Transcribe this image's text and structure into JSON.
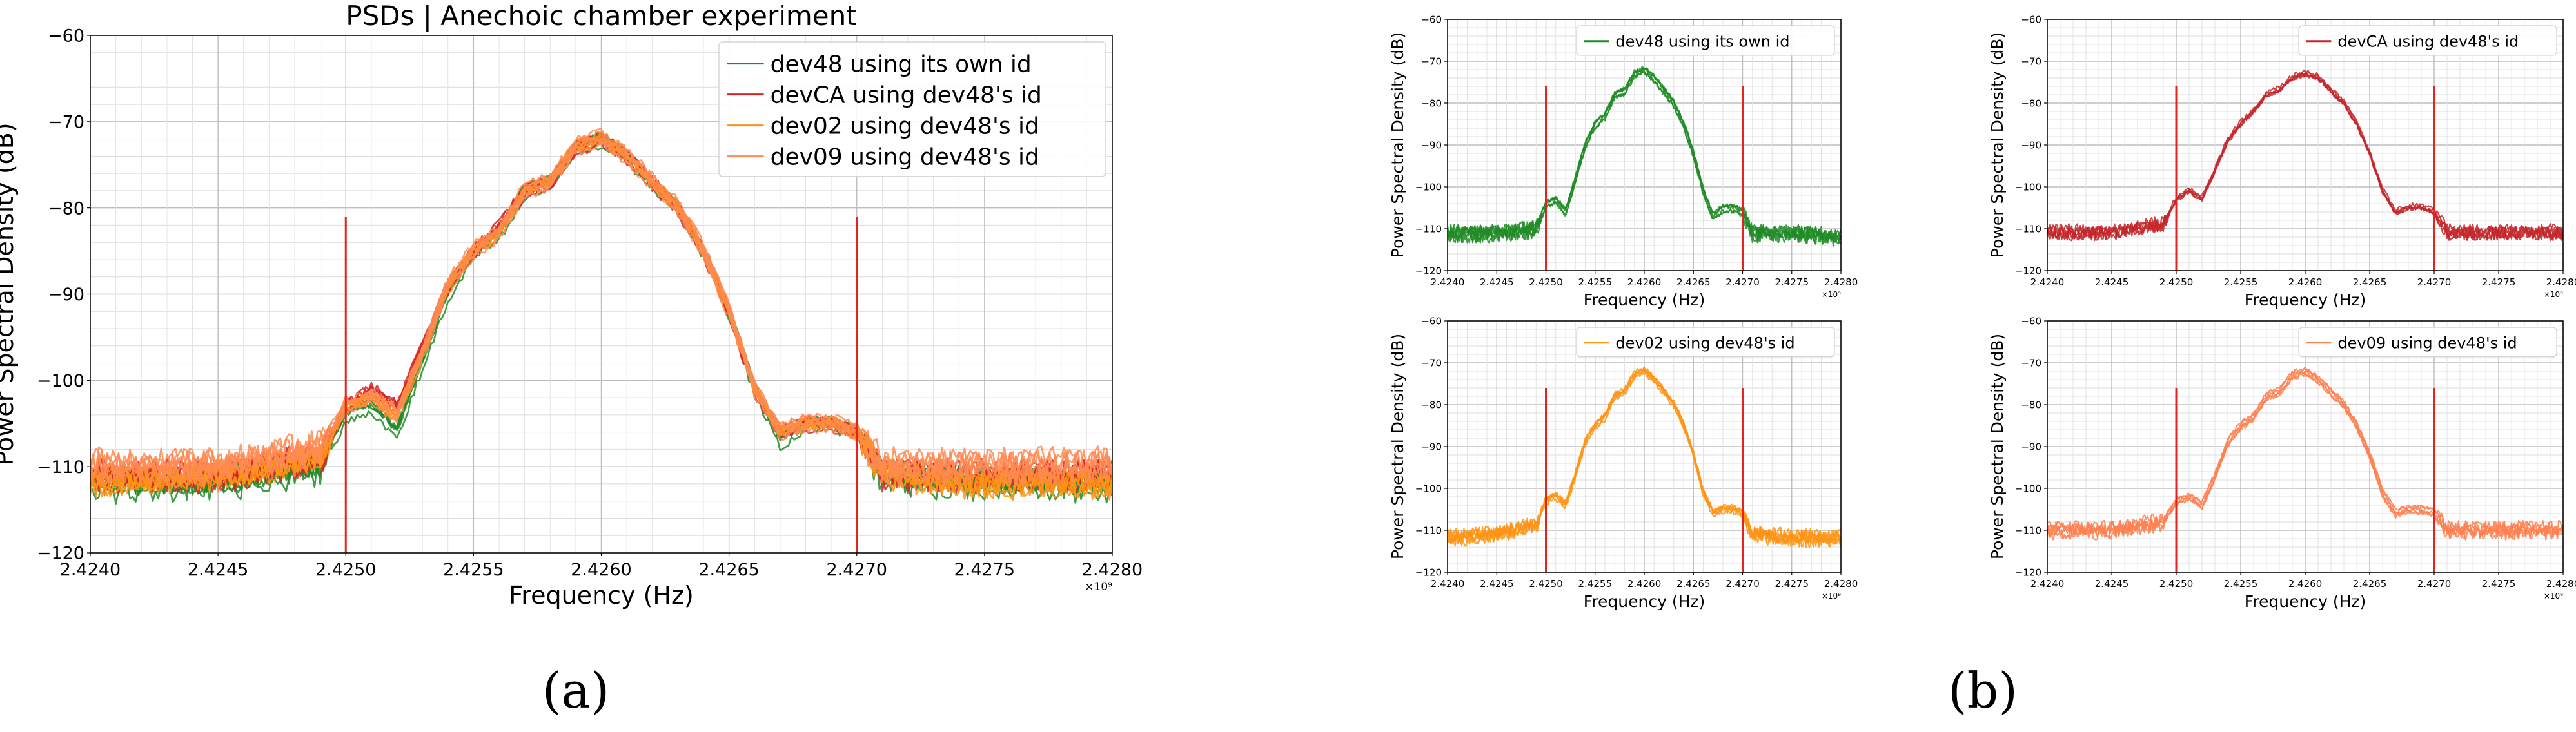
{
  "chart_data": [
    {
      "id": "a",
      "type": "line",
      "title": "PSDs | Anechoic chamber experiment",
      "xlabel": "Frequency (Hz)",
      "ylabel": "Power Spectral Density (dB)",
      "x_scale_label": "×10⁹",
      "xlim": [
        2.424,
        2.428
      ],
      "ylim": [
        -120,
        -60
      ],
      "x_ticks": [
        "2.4240",
        "2.4245",
        "2.4250",
        "2.4255",
        "2.4260",
        "2.4265",
        "2.4270",
        "2.4275",
        "2.4280"
      ],
      "y_ticks": [
        "−60",
        "−70",
        "−80",
        "−90",
        "−100",
        "−110",
        "−120"
      ],
      "grid": true,
      "legend_position": "upper-right",
      "vlines": [
        {
          "x": 2.425,
          "y_range": [
            -120,
            -81
          ],
          "color": "#e8211b"
        },
        {
          "x": 2.427,
          "y_range": [
            -120,
            -81
          ],
          "color": "#e8211b"
        }
      ],
      "series": [
        {
          "name": "dev48 using its own id",
          "color": "#1f8b24",
          "trace_count": 6,
          "x": [
            2.424,
            2.4245,
            2.4249,
            2.425,
            2.4251,
            2.4252,
            2.4253,
            2.4254,
            2.4255,
            2.4256,
            2.4257,
            2.4258,
            2.4259,
            2.426,
            2.4261,
            2.4262,
            2.4263,
            2.4264,
            2.4265,
            2.4266,
            2.4267,
            2.4268,
            2.4269,
            2.427,
            2.4271,
            2.4275,
            2.428
          ],
          "y": [
            -112,
            -112,
            -110,
            -104,
            -103,
            -106,
            -98,
            -90,
            -85,
            -83,
            -78,
            -77,
            -73,
            -72,
            -74,
            -77,
            -80,
            -85,
            -92,
            -101,
            -107,
            -105,
            -105,
            -106,
            -111,
            -112,
            -112
          ]
        },
        {
          "name": "devCA using dev48's id",
          "color": "#d62728",
          "trace_count": 6,
          "x": [
            2.424,
            2.4245,
            2.4249,
            2.425,
            2.4251,
            2.4252,
            2.4253,
            2.4254,
            2.4255,
            2.4256,
            2.4257,
            2.4258,
            2.4259,
            2.426,
            2.4261,
            2.4262,
            2.4263,
            2.4264,
            2.4265,
            2.4266,
            2.4267,
            2.4268,
            2.4269,
            2.427,
            2.4271,
            2.4275,
            2.428
          ],
          "y": [
            -111,
            -111,
            -109,
            -103,
            -101,
            -103,
            -96,
            -89,
            -85,
            -82,
            -78,
            -77,
            -73,
            -72,
            -74,
            -77,
            -80,
            -85,
            -92,
            -101,
            -106,
            -105,
            -105,
            -106,
            -111,
            -111,
            -111
          ]
        },
        {
          "name": "dev02 using dev48's id",
          "color": "#ff9414",
          "trace_count": 6,
          "x": [
            2.424,
            2.4245,
            2.4249,
            2.425,
            2.4251,
            2.4252,
            2.4253,
            2.4254,
            2.4255,
            2.4256,
            2.4257,
            2.4258,
            2.4259,
            2.426,
            2.4261,
            2.4262,
            2.4263,
            2.4264,
            2.4265,
            2.4266,
            2.4267,
            2.4268,
            2.4269,
            2.427,
            2.4271,
            2.4275,
            2.428
          ],
          "y": [
            -112,
            -111,
            -109,
            -103,
            -102,
            -104,
            -97,
            -89,
            -85,
            -83,
            -78,
            -77,
            -73,
            -72,
            -74,
            -77,
            -80,
            -85,
            -92,
            -101,
            -106,
            -105,
            -105,
            -106,
            -111,
            -112,
            -112
          ]
        },
        {
          "name": "dev09 using dev48's id",
          "color": "#ff8a52",
          "trace_count": 6,
          "x": [
            2.424,
            2.4245,
            2.4249,
            2.425,
            2.4251,
            2.4252,
            2.4253,
            2.4254,
            2.4255,
            2.4256,
            2.4257,
            2.4258,
            2.4259,
            2.426,
            2.4261,
            2.4262,
            2.4263,
            2.4264,
            2.4265,
            2.4266,
            2.4267,
            2.4268,
            2.4269,
            2.427,
            2.4271,
            2.4275,
            2.428
          ],
          "y": [
            -110,
            -110,
            -108,
            -103,
            -102,
            -104,
            -97,
            -89,
            -85,
            -83,
            -78,
            -77,
            -73,
            -72,
            -74,
            -77,
            -80,
            -85,
            -92,
            -101,
            -106,
            -105,
            -105,
            -106,
            -110,
            -110,
            -110
          ]
        }
      ]
    },
    {
      "id": "b1",
      "type": "line",
      "xlabel": "Frequency (Hz)",
      "ylabel": "Power Spectral Density (dB)",
      "x_scale_label": "×10⁹",
      "xlim": [
        2.424,
        2.428
      ],
      "ylim": [
        -120,
        -60
      ],
      "x_ticks": [
        "2.4240",
        "2.4245",
        "2.4250",
        "2.4255",
        "2.4260",
        "2.4265",
        "2.4270",
        "2.4275",
        "2.4280"
      ],
      "y_ticks": [
        "−60",
        "−70",
        "−80",
        "−90",
        "−100",
        "−110",
        "−120"
      ],
      "grid": true,
      "legend_position": "upper-right",
      "vlines": [
        {
          "x": 2.425,
          "y_range": [
            -120,
            -76
          ],
          "color": "#e8211b"
        },
        {
          "x": 2.427,
          "y_range": [
            -120,
            -76
          ],
          "color": "#e8211b"
        }
      ],
      "series": [
        {
          "name": "dev48 using its own id",
          "color": "#1f8b24",
          "trace_count": 5,
          "x": [
            2.424,
            2.4245,
            2.4249,
            2.425,
            2.4251,
            2.4252,
            2.4253,
            2.4254,
            2.4255,
            2.4256,
            2.4257,
            2.4258,
            2.4259,
            2.426,
            2.4261,
            2.4262,
            2.4263,
            2.4264,
            2.4265,
            2.4266,
            2.4267,
            2.4268,
            2.4269,
            2.427,
            2.4271,
            2.4275,
            2.428
          ],
          "y": [
            -111,
            -111,
            -110,
            -104,
            -103,
            -106,
            -98,
            -90,
            -85,
            -83,
            -78,
            -77,
            -73,
            -72,
            -74,
            -77,
            -80,
            -85,
            -92,
            -101,
            -107,
            -105,
            -105,
            -106,
            -111,
            -111,
            -112
          ]
        }
      ]
    },
    {
      "id": "b2",
      "type": "line",
      "xlabel": "Frequency (Hz)",
      "ylabel": "Power Spectral Density (dB)",
      "x_scale_label": "×10⁹",
      "xlim": [
        2.424,
        2.428
      ],
      "ylim": [
        -120,
        -60
      ],
      "x_ticks": [
        "2.4240",
        "2.4245",
        "2.4250",
        "2.4255",
        "2.4260",
        "2.4265",
        "2.4270",
        "2.4275",
        "2.4280"
      ],
      "y_ticks": [
        "−60",
        "−70",
        "−80",
        "−90",
        "−100",
        "−110",
        "−120"
      ],
      "grid": true,
      "legend_position": "upper-right",
      "vlines": [
        {
          "x": 2.425,
          "y_range": [
            -120,
            -76
          ],
          "color": "#e8211b"
        },
        {
          "x": 2.427,
          "y_range": [
            -120,
            -76
          ],
          "color": "#e8211b"
        }
      ],
      "series": [
        {
          "name": "devCA using dev48's id",
          "color": "#c4262a",
          "trace_count": 5,
          "x": [
            2.424,
            2.4245,
            2.4249,
            2.425,
            2.4251,
            2.4252,
            2.4253,
            2.4254,
            2.4255,
            2.4256,
            2.4257,
            2.4258,
            2.4259,
            2.426,
            2.4261,
            2.4262,
            2.4263,
            2.4264,
            2.4265,
            2.4266,
            2.4267,
            2.4268,
            2.4269,
            2.427,
            2.4271,
            2.4275,
            2.428
          ],
          "y": [
            -111,
            -111,
            -109,
            -103,
            -101,
            -103,
            -96,
            -89,
            -85,
            -82,
            -78,
            -77,
            -74,
            -73,
            -74,
            -77,
            -80,
            -85,
            -92,
            -101,
            -106,
            -105,
            -105,
            -106,
            -111,
            -111,
            -111
          ]
        }
      ]
    },
    {
      "id": "b3",
      "type": "line",
      "xlabel": "Frequency (Hz)",
      "ylabel": "Power Spectral Density (dB)",
      "x_scale_label": "×10⁹",
      "xlim": [
        2.424,
        2.428
      ],
      "ylim": [
        -120,
        -60
      ],
      "x_ticks": [
        "2.4240",
        "2.4245",
        "2.4250",
        "2.4255",
        "2.4260",
        "2.4265",
        "2.4270",
        "2.4275",
        "2.4280"
      ],
      "y_ticks": [
        "−60",
        "−70",
        "−80",
        "−90",
        "−100",
        "−110",
        "−120"
      ],
      "grid": true,
      "legend_position": "upper-right",
      "vlines": [
        {
          "x": 2.425,
          "y_range": [
            -120,
            -76
          ],
          "color": "#e8211b"
        },
        {
          "x": 2.427,
          "y_range": [
            -120,
            -76
          ],
          "color": "#e8211b"
        }
      ],
      "series": [
        {
          "name": "dev02 using dev48's id",
          "color": "#ff9414",
          "trace_count": 5,
          "x": [
            2.424,
            2.4245,
            2.4249,
            2.425,
            2.4251,
            2.4252,
            2.4253,
            2.4254,
            2.4255,
            2.4256,
            2.4257,
            2.4258,
            2.4259,
            2.426,
            2.4261,
            2.4262,
            2.4263,
            2.4264,
            2.4265,
            2.4266,
            2.4267,
            2.4268,
            2.4269,
            2.427,
            2.4271,
            2.4275,
            2.428
          ],
          "y": [
            -112,
            -111,
            -109,
            -103,
            -102,
            -104,
            -97,
            -89,
            -85,
            -83,
            -78,
            -77,
            -73,
            -72,
            -74,
            -77,
            -80,
            -85,
            -92,
            -101,
            -106,
            -105,
            -105,
            -106,
            -111,
            -112,
            -112
          ]
        }
      ]
    },
    {
      "id": "b4",
      "type": "line",
      "xlabel": "Frequency (Hz)",
      "ylabel": "Power Spectral Density (dB)",
      "x_scale_label": "×10⁹",
      "xlim": [
        2.424,
        2.428
      ],
      "ylim": [
        -120,
        -60
      ],
      "x_ticks": [
        "2.4240",
        "2.4245",
        "2.4250",
        "2.4255",
        "2.4260",
        "2.4265",
        "2.4270",
        "2.4275",
        "2.4280"
      ],
      "y_ticks": [
        "−60",
        "−70",
        "−80",
        "−90",
        "−100",
        "−110",
        "−120"
      ],
      "grid": true,
      "legend_position": "upper-right",
      "vlines": [
        {
          "x": 2.425,
          "y_range": [
            -120,
            -76
          ],
          "color": "#e8211b"
        },
        {
          "x": 2.427,
          "y_range": [
            -120,
            -76
          ],
          "color": "#e8211b"
        }
      ],
      "series": [
        {
          "name": "dev09 using dev48's id",
          "color": "#ff7f4f",
          "trace_count": 5,
          "x": [
            2.424,
            2.4245,
            2.4249,
            2.425,
            2.4251,
            2.4252,
            2.4253,
            2.4254,
            2.4255,
            2.4256,
            2.4257,
            2.4258,
            2.4259,
            2.426,
            2.4261,
            2.4262,
            2.4263,
            2.4264,
            2.4265,
            2.4266,
            2.4267,
            2.4268,
            2.4269,
            2.427,
            2.4271,
            2.4275,
            2.428
          ],
          "y": [
            -110,
            -110,
            -108,
            -103,
            -102,
            -104,
            -97,
            -89,
            -85,
            -83,
            -78,
            -77,
            -73,
            -72,
            -74,
            -77,
            -80,
            -85,
            -92,
            -101,
            -106,
            -105,
            -105,
            -106,
            -110,
            -110,
            -110
          ]
        }
      ]
    }
  ],
  "captions": {
    "a": "(a)",
    "b": "(b)"
  }
}
